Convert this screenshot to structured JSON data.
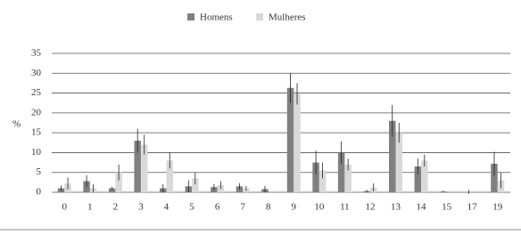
{
  "chart_data": {
    "type": "bar",
    "y_label": "%",
    "categories": [
      "0",
      "1",
      "2",
      "3",
      "4",
      "5",
      "6",
      "7",
      "8",
      "9",
      "10",
      "11",
      "12",
      "13",
      "14",
      "15",
      "17",
      "19"
    ],
    "series": [
      {
        "name": "Homens",
        "color": "#808080",
        "values": [
          1.0,
          2.8,
          1.0,
          13.0,
          1.0,
          1.5,
          1.3,
          1.5,
          0.8,
          26.3,
          7.5,
          10.0,
          0.3,
          18.0,
          6.5,
          0.2,
          0.1,
          7.2
        ],
        "errors": [
          0.7,
          1.5,
          0.4,
          3.0,
          1.0,
          1.5,
          0.8,
          0.8,
          0.8,
          3.8,
          3.0,
          2.8,
          0.3,
          4.0,
          2.0,
          0.2,
          0.5,
          3.0
        ]
      },
      {
        "name": "Mulheres",
        "color": "#d9d9d9",
        "values": [
          2.2,
          1.0,
          5.0,
          12.0,
          8.0,
          3.5,
          1.8,
          1.0,
          0,
          24.8,
          5.5,
          7.0,
          1.2,
          15.0,
          8.0,
          0,
          0,
          3.0
        ],
        "errors": [
          1.5,
          1.0,
          2.0,
          2.5,
          2.0,
          1.5,
          1.0,
          0.6,
          0,
          2.7,
          2.0,
          1.5,
          1.0,
          2.5,
          1.5,
          0,
          0,
          2.0
        ]
      }
    ],
    "ylim": [
      0,
      35
    ],
    "yticks": [
      0,
      5,
      10,
      15,
      20,
      25,
      30,
      35
    ],
    "grid": true,
    "legend": "top"
  }
}
